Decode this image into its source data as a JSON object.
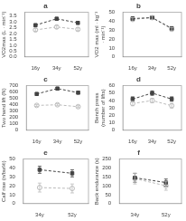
{
  "chart_data": [
    {
      "type": "line",
      "title": "a",
      "ylabel": "VO2max (L · min⁻¹)",
      "categories": [
        "16y",
        "34y",
        "52y"
      ],
      "ylim": [
        0.0,
        3.8
      ],
      "yticks": [
        {
          "value": 0.0,
          "label": "0.0"
        },
        0.5,
        {
          "value": 1.0,
          "label": "1.0"
        },
        1.5,
        {
          "value": 2.0,
          "label": "2.0"
        },
        2.5,
        {
          "value": 3.0,
          "label": "3.0"
        },
        3.5
      ],
      "grid": false,
      "line_style": "dashed",
      "series": [
        {
          "color": "#444444",
          "marker": "square",
          "values": [
            2.7,
            3.25,
            2.9
          ],
          "errors": [
            0.12,
            0.12,
            0.12
          ]
        },
        {
          "color": "#bbbbbb",
          "marker": "open_circle",
          "values": [
            2.3,
            2.55,
            2.35
          ],
          "errors": [
            0.12,
            0.12,
            0.12
          ]
        }
      ]
    },
    {
      "type": "line",
      "title": "b",
      "ylabel": "VO2 max (ml · kg⁻¹ · min⁻¹)",
      "categories": [
        "16y",
        "34y",
        "52y"
      ],
      "ylim": [
        0,
        50
      ],
      "yticks": [
        0,
        10,
        20,
        30,
        40,
        50
      ],
      "grid": false,
      "line_style": "dashed",
      "series": [
        {
          "color": "#444444",
          "marker": "square",
          "values": [
            43,
            44,
            32
          ],
          "errors": [
            2,
            2,
            2
          ]
        },
        {
          "color": "#bbbbbb",
          "marker": "open_circle",
          "values": [
            42,
            44,
            31
          ],
          "errors": [
            2,
            2,
            2
          ]
        }
      ]
    },
    {
      "type": "line",
      "title": "c",
      "ylabel": "Two hand lift (N)",
      "categories": [
        "16y",
        "34y",
        "52y"
      ],
      "ylim": [
        0,
        700
      ],
      "yticks": [
        0,
        100,
        200,
        300,
        400,
        500,
        600,
        700
      ],
      "grid": false,
      "line_style": "dashed",
      "series": [
        {
          "color": "#444444",
          "marker": "square",
          "values": [
            570,
            655,
            590
          ],
          "errors": [
            20,
            20,
            20
          ]
        },
        {
          "color": "#bbbbbb",
          "marker": "open_circle",
          "values": [
            390,
            400,
            370
          ],
          "errors": [
            15,
            15,
            15
          ]
        }
      ]
    },
    {
      "type": "line",
      "title": "d",
      "ylabel": "Bench press (number of lifts)",
      "categories": [
        "16y",
        "34y",
        "52y"
      ],
      "ylim": [
        0,
        60
      ],
      "yticks": [
        0,
        10,
        20,
        30,
        40,
        50,
        60
      ],
      "grid": false,
      "line_style": "dashed",
      "series": [
        {
          "color": "#444444",
          "marker": "square",
          "values": [
            42,
            50,
            42
          ],
          "errors": [
            3,
            3,
            3
          ]
        },
        {
          "color": "#bbbbbb",
          "marker": "open_circle",
          "values": [
            36,
            40,
            33
          ],
          "errors": [
            3,
            3,
            3
          ]
        }
      ]
    },
    {
      "type": "line",
      "title": "e",
      "ylabel": "Calf rise (n/bw%)",
      "categories": [
        "34y",
        "52y"
      ],
      "ylim": [
        0,
        50
      ],
      "yticks": [
        0,
        10,
        20,
        30,
        40,
        50
      ],
      "grid": false,
      "line_style": "dashed",
      "series": [
        {
          "color": "#444444",
          "marker": "square",
          "values": [
            38,
            34
          ],
          "errors": [
            4,
            4
          ]
        },
        {
          "color": "#bbbbbb",
          "marker": "open_circle",
          "values": [
            18,
            17
          ],
          "errors": [
            5,
            5
          ]
        }
      ]
    },
    {
      "type": "line",
      "title": "f",
      "ylabel": "Back endurance (s)",
      "categories": [
        "34y",
        "52y"
      ],
      "ylim": [
        0,
        250
      ],
      "yticks": [
        0,
        50,
        100,
        150,
        200,
        250
      ],
      "grid": false,
      "line_style": "dashed",
      "series": [
        {
          "color": "#444444",
          "marker": "square",
          "values": [
            145,
            118
          ],
          "errors": [
            25,
            20
          ]
        },
        {
          "color": "#bbbbbb",
          "marker": "open_circle",
          "values": [
            140,
            100
          ],
          "errors": [
            30,
            25
          ]
        }
      ]
    }
  ]
}
